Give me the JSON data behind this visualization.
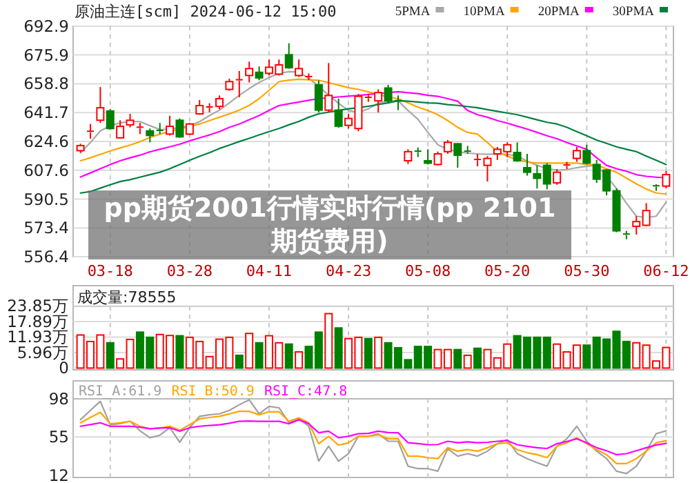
{
  "chart_data": [
    {
      "type": "candlestick",
      "title": "原油主连[scm] 2024-06-12 15:00",
      "categories": [
        null,
        null,
        null,
        "03-18",
        null,
        null,
        null,
        null,
        null,
        null,
        null,
        "03-28",
        null,
        null,
        null,
        null,
        null,
        null,
        null,
        "04-11",
        null,
        null,
        null,
        null,
        null,
        null,
        null,
        "04-23",
        null,
        null,
        null,
        null,
        null,
        null,
        null,
        "05-08",
        null,
        null,
        null,
        null,
        null,
        null,
        null,
        "05-20",
        null,
        null,
        null,
        null,
        null,
        null,
        null,
        "05-30",
        null,
        null,
        null,
        null,
        null,
        null,
        null,
        "06-12"
      ],
      "ohlc": [
        [
          619.2,
          623.3,
          618.1,
          622.2
        ],
        [
          630.1,
          635.0,
          626.3,
          630.7
        ],
        [
          637.2,
          656.9,
          635.6,
          644.6
        ],
        [
          642.7,
          643.8,
          631.7,
          632.3
        ],
        [
          626.8,
          637.2,
          626.3,
          633.6
        ],
        [
          634.5,
          641.0,
          633.0,
          637.2
        ],
        [
          632.6,
          635.6,
          629.0,
          633.1
        ],
        [
          630.9,
          632.3,
          624.1,
          628.2
        ],
        [
          631.2,
          635.6,
          629.0,
          630.7
        ],
        [
          629.0,
          639.9,
          628.2,
          633.6
        ],
        [
          637.2,
          638.3,
          626.8,
          627.4
        ],
        [
          629.0,
          635.6,
          628.5,
          635.0
        ],
        [
          641.0,
          649.2,
          640.5,
          645.9
        ],
        [
          644.6,
          647.3,
          641.9,
          645.1
        ],
        [
          645.4,
          651.9,
          643.8,
          650.0
        ],
        [
          655.5,
          661.8,
          654.7,
          660.1
        ],
        [
          660.7,
          666.4,
          650.8,
          661.2
        ],
        [
          663.7,
          671.9,
          659.6,
          667.8
        ],
        [
          665.6,
          669.1,
          660.9,
          662.3
        ],
        [
          665.0,
          673.2,
          663.7,
          668.6
        ],
        [
          664.5,
          673.2,
          663.7,
          670.0
        ],
        [
          676.0,
          682.8,
          667.8,
          668.3
        ],
        [
          663.7,
          673.2,
          662.9,
          667.8
        ],
        [
          662.6,
          665.0,
          661.0,
          663.1
        ],
        [
          658.2,
          660.9,
          641.8,
          643.2
        ],
        [
          643.2,
          671.1,
          641.8,
          651.9
        ],
        [
          643.2,
          650.0,
          632.8,
          633.7
        ],
        [
          634.2,
          641.0,
          632.3,
          638.3
        ],
        [
          632.3,
          652.8,
          630.7,
          651.4
        ],
        [
          650.3,
          652.8,
          648.1,
          650.8
        ],
        [
          648.7,
          655.5,
          641.8,
          653.6
        ],
        [
          656.3,
          658.2,
          647.3,
          648.7
        ],
        [
          648.9,
          651.9,
          643.2,
          648.4
        ],
        [
          613.2,
          620.0,
          611.3,
          618.6
        ],
        [
          618.9,
          621.1,
          615.4,
          618.4
        ],
        [
          613.2,
          620.0,
          611.0,
          611.8
        ],
        [
          611.0,
          618.6,
          610.5,
          617.3
        ],
        [
          618.6,
          625.5,
          617.3,
          624.1
        ],
        [
          623.3,
          623.6,
          609.1,
          616.5
        ],
        [
          618.9,
          622.0,
          617.3,
          618.4
        ],
        [
          613.5,
          617.3,
          609.9,
          614.0
        ],
        [
          610.5,
          616.0,
          600.9,
          614.6
        ],
        [
          617.3,
          621.4,
          613.7,
          620.0
        ],
        [
          618.6,
          624.1,
          615.4,
          622.7
        ],
        [
          618.1,
          624.1,
          612.6,
          613.2
        ],
        [
          609.1,
          617.3,
          604.4,
          606.4
        ],
        [
          605.5,
          610.5,
          596.8,
          602.8
        ],
        [
          610.5,
          611.8,
          596.3,
          599.5
        ],
        [
          600.1,
          608.3,
          599.0,
          606.4
        ],
        [
          610.2,
          612.6,
          608.3,
          610.7
        ],
        [
          614.6,
          621.4,
          612.6,
          619.2
        ],
        [
          619.2,
          622.7,
          611.0,
          611.8
        ],
        [
          611.0,
          613.7,
          600.1,
          602.3
        ],
        [
          607.7,
          608.3,
          592.7,
          595.4
        ],
        [
          595.4,
          596.8,
          570.9,
          571.7
        ],
        [
          569.8,
          571.7,
          566.8,
          569.2
        ],
        [
          574.4,
          580.4,
          569.5,
          577.2
        ],
        [
          575.0,
          588.1,
          574.4,
          583.7
        ],
        [
          598.4,
          599.3,
          595.4,
          597.9
        ],
        [
          598.2,
          607.2,
          596.8,
          605.0
        ]
      ],
      "colors": [
        "#ff0000",
        "#ff0000",
        "#ff0000",
        "#008000",
        "#ff0000",
        "#ff0000",
        "#ff0000",
        "#008000",
        "#008000",
        "#ff0000",
        "#008000",
        "#ff0000",
        "#ff0000",
        "#ff0000",
        "#ff0000",
        "#ff0000",
        "#ff0000",
        "#ff0000",
        "#008000",
        "#ff0000",
        "#ff0000",
        "#008000",
        "#ff0000",
        "#ff0000",
        "#008000",
        "#ff0000",
        "#008000",
        "#ff0000",
        "#ff0000",
        "#ff0000",
        "#ff0000",
        "#008000",
        "#008000",
        "#ff0000",
        "#008000",
        "#008000",
        "#ff0000",
        "#ff0000",
        "#008000",
        "#008000",
        "#ff0000",
        "#ff0000",
        "#ff0000",
        "#ff0000",
        "#008000",
        "#008000",
        "#008000",
        "#008000",
        "#ff0000",
        "#ff0000",
        "#ff0000",
        "#008000",
        "#008000",
        "#008000",
        "#008000",
        "#008000",
        "#ff0000",
        "#ff0000",
        "#008000",
        "#ff0000"
      ],
      "series": [
        {
          "name": "5PMA",
          "type": "line",
          "color": "#a8a8a8",
          "values": [
            617.8,
            624,
            630.9,
            634,
            635.6,
            636.5,
            636.4,
            634,
            631.7,
            632,
            632.8,
            634,
            636.4,
            640,
            643.2,
            647.5,
            652.0,
            656,
            659.6,
            662.5,
            665.0,
            666,
            665.9,
            662,
            657.4,
            652,
            647.3,
            643,
            641.8,
            644,
            647.3,
            648.5,
            648.7,
            643,
            637.8,
            630,
            622.7,
            620,
            618.6,
            617.8,
            617.3,
            617,
            617.3,
            617,
            616.0,
            613,
            610.5,
            608.5,
            607.7,
            608,
            609.1,
            610,
            610.5,
            604,
            596.8,
            588,
            580.4,
            579.5,
            580.4,
            588.6
          ]
        },
        {
          "name": "10PMA",
          "type": "line",
          "color": "#ffa500",
          "values": [
            613.2,
            615,
            617,
            619,
            620.8,
            622.5,
            624.5,
            627,
            629.0,
            630.5,
            632,
            633.5,
            635.0,
            637,
            639,
            641,
            643.2,
            646,
            650,
            655,
            660.1,
            661,
            661.5,
            661.2,
            660.9,
            659.5,
            658,
            656.5,
            655.5,
            654,
            652.5,
            651,
            650.0,
            647.5,
            645,
            643,
            640.5,
            637,
            633,
            630,
            629.0,
            624,
            618.6,
            616,
            613.7,
            612.5,
            611.8,
            611.8,
            611.8,
            611.8,
            611.8,
            611,
            610.5,
            608.5,
            606.4,
            603,
            599.5,
            596.5,
            594.1,
            593.5
          ]
        },
        {
          "name": "20PMA",
          "type": "line",
          "color": "#ff00ff",
          "values": [
            603.6,
            606,
            608.5,
            611,
            613.2,
            615,
            616.5,
            618.5,
            620.0,
            621.5,
            623,
            625,
            626.8,
            628.5,
            630.5,
            633,
            635.0,
            637.5,
            640,
            643,
            645.9,
            647,
            648,
            649,
            650.0,
            650.5,
            651,
            651.5,
            651.9,
            652.5,
            653,
            653.5,
            654.1,
            653.5,
            653,
            652,
            651.4,
            650,
            648.5,
            643,
            640.5,
            639,
            637,
            635.5,
            633.7,
            632,
            630,
            628,
            626.3,
            624,
            622,
            620.0,
            615,
            610.5,
            608.5,
            607,
            605.0,
            604,
            603.5,
            603.1
          ]
        },
        {
          "name": "30PMA",
          "type": "line",
          "color": "#008040",
          "values": [
            594.1,
            595,
            597,
            599,
            600.9,
            602,
            603.5,
            605,
            606.4,
            608.5,
            611,
            613.5,
            615.9,
            618,
            620.5,
            622.5,
            624.6,
            626.5,
            628.5,
            630.5,
            632.3,
            634.5,
            636.5,
            639,
            641.0,
            642,
            643,
            644,
            644.6,
            645.5,
            646.5,
            647.5,
            648.7,
            648.5,
            648,
            647.5,
            647.3,
            646.5,
            646,
            645.3,
            644.6,
            643.5,
            642.5,
            641.5,
            640.5,
            639,
            637.5,
            636,
            635.0,
            633,
            630.5,
            628,
            625.5,
            623.5,
            621.5,
            620,
            618.6,
            616,
            613.5,
            611.0
          ]
        }
      ],
      "ylim": [
        556.4,
        692.9
      ],
      "yticks": [
        556.4,
        573.4,
        590.5,
        607.6,
        624.6,
        641.7,
        658.8,
        675.9,
        692.9
      ],
      "grid": true,
      "legend": "top right",
      "annotations": [
        "pp期货2001行情实时行情(pp 2101期货费用)"
      ]
    },
    {
      "type": "bar",
      "title": "成交量:78555",
      "categories": [
        null,
        null,
        null,
        null,
        null,
        null,
        null,
        null,
        null,
        null,
        null,
        null,
        null,
        null,
        null,
        null,
        null,
        null,
        null,
        null,
        null,
        null,
        null,
        null,
        null,
        null,
        null,
        null,
        null,
        null,
        null,
        null,
        null,
        null,
        null,
        null,
        null,
        null,
        null,
        null,
        null,
        null,
        null,
        null,
        null,
        null,
        null,
        null,
        null,
        null,
        null,
        null,
        null,
        null,
        null,
        null,
        null,
        null,
        null,
        null
      ],
      "values": [
        12.7,
        10.2,
        12.7,
        9.7,
        3.5,
        11.0,
        13.8,
        11.8,
        12.9,
        12.5,
        12.4,
        11.8,
        10.2,
        4.4,
        11.1,
        11.8,
        4.9,
        13.3,
        9.7,
        12.4,
        9.7,
        9.2,
        6.2,
        8.3,
        13.8,
        20.9,
        15.4,
        11.3,
        11.8,
        11.3,
        11.8,
        9.7,
        7.8,
        3.2,
        8.3,
        8.3,
        7.1,
        7.1,
        7.1,
        4.9,
        7.6,
        7.1,
        3.9,
        9.2,
        12.4,
        11.8,
        11.8,
        11.8,
        9.2,
        6.2,
        8.8,
        8.8,
        11.8,
        11.1,
        14.1,
        10.2,
        9.7,
        8.8,
        2.7,
        7.9
      ],
      "colors": [
        "#ff0000",
        "#ff0000",
        "#ff0000",
        "#008000",
        "#ff0000",
        "#ff0000",
        "#008000",
        "#008000",
        "#ff0000",
        "#ff0000",
        "#008000",
        "#ff0000",
        "#ff0000",
        "#ff0000",
        "#ff0000",
        "#ff0000",
        "#008000",
        "#ff0000",
        "#008000",
        "#ff0000",
        "#ff0000",
        "#008000",
        "#ff0000",
        "#008000",
        "#008000",
        "#ff0000",
        "#008000",
        "#ff0000",
        "#ff0000",
        "#008000",
        "#ff0000",
        "#008000",
        "#008000",
        "#008000",
        "#008000",
        "#008000",
        "#ff0000",
        "#ff0000",
        "#008000",
        "#ff0000",
        "#008000",
        "#ff0000",
        "#ff0000",
        "#ff0000",
        "#008000",
        "#008000",
        "#008000",
        "#008000",
        "#ff0000",
        "#ff0000",
        "#ff0000",
        "#008000",
        "#008000",
        "#008000",
        "#008000",
        "#008000",
        "#ff0000",
        "#ff0000",
        "#ff0000",
        "#ff0000"
      ],
      "ylim": [
        0,
        23.85
      ],
      "yticks": [
        0,
        {
          "value": 5.96,
          "label": "5.96万"
        },
        {
          "value": 11.93,
          "label": "11.93万"
        },
        {
          "value": 17.89,
          "label": "17.89万"
        },
        {
          "value": 23.85,
          "label": "23.85万"
        }
      ],
      "grid": true
    },
    {
      "type": "line",
      "categories": [
        null,
        null,
        null,
        null,
        null,
        null,
        null,
        null,
        null,
        null,
        null,
        null,
        null,
        null,
        null,
        null,
        null,
        null,
        null,
        null,
        null,
        null,
        null,
        null,
        null,
        null,
        null,
        null,
        null,
        null,
        null,
        null,
        null,
        null,
        null,
        null,
        null,
        null,
        null,
        null,
        null,
        null,
        null,
        null,
        null,
        null,
        null,
        null,
        null,
        null,
        null,
        null,
        null,
        null,
        null,
        null,
        null,
        null,
        null,
        null
      ],
      "series": [
        {
          "name": "RSI_A:61.9",
          "color": "#a0a0a0",
          "values": [
            74.4,
            85,
            95.2,
            68.8,
            70,
            72.7,
            62,
            54.2,
            57,
            65.4,
            49.1,
            65.4,
            78.3,
            80,
            81.1,
            85,
            91.3,
            96.9,
            81.1,
            89.6,
            87.9,
            71.0,
            75.5,
            67.1,
            27.8,
            44.6,
            27.8,
            36.2,
            55.8,
            55.8,
            58.7,
            50.2,
            50.2,
            22.1,
            19.3,
            19.3,
            16.5,
            41.8,
            33.4,
            36.2,
            33.4,
            39.0,
            47.4,
            51.9,
            36.2,
            30.6,
            26.1,
            22.1,
            44.6,
            53.0,
            67.1,
            50.2,
            39.0,
            30.6,
            16.5,
            13.7,
            22.1,
            39.0,
            58.7,
            61.9
          ]
        },
        {
          "name": "RSI_B:50.9",
          "color": "#ffa500",
          "values": [
            71.0,
            77,
            82.8,
            69.9,
            71,
            72.7,
            67,
            64.3,
            65,
            67.1,
            62.6,
            68.8,
            75.5,
            77,
            78.3,
            81,
            83.9,
            83.9,
            80.0,
            83.4,
            83.4,
            72.7,
            76.6,
            71.0,
            47.4,
            55.8,
            45.7,
            48.5,
            55.8,
            55.8,
            57.5,
            53.0,
            53.0,
            33.4,
            33.4,
            31.7,
            30.6,
            42.9,
            39.0,
            40.7,
            39.0,
            42.9,
            47.4,
            48.5,
            40.7,
            37.3,
            35.1,
            31.7,
            44.6,
            48.5,
            54.2,
            47.4,
            40.7,
            35.1,
            25.0,
            25.0,
            30.6,
            39.0,
            48.5,
            50.9
          ]
        },
        {
          "name": "RSI_C:47.8",
          "color": "#ff00ff",
          "values": [
            67.1,
            69,
            71.0,
            67.1,
            67,
            67.1,
            66,
            64.3,
            65,
            65.4,
            61.5,
            65.4,
            67.1,
            68,
            68.8,
            70.5,
            72.7,
            73,
            72.7,
            72.7,
            72.7,
            69.9,
            74.4,
            69.9,
            59.8,
            61.5,
            54.2,
            55.8,
            58.7,
            59,
            61.5,
            60,
            59.8,
            48.5,
            47.5,
            46.3,
            46.5,
            50.2,
            48.5,
            49.5,
            48.5,
            49,
            50.2,
            51,
            46.3,
            44.5,
            42.9,
            42,
            47.4,
            50,
            53.0,
            48.5,
            42.9,
            39.5,
            35.1,
            36.2,
            39.5,
            42.9,
            46,
            47.8
          ]
        }
      ],
      "ylim": [
        12,
        98
      ],
      "yticks": [
        12,
        55,
        98
      ],
      "grid": "x",
      "ref_lines": [
        {
          "axis": "y",
          "value": 55,
          "color": "#dcdcdc"
        }
      ],
      "legend": "top left"
    }
  ]
}
